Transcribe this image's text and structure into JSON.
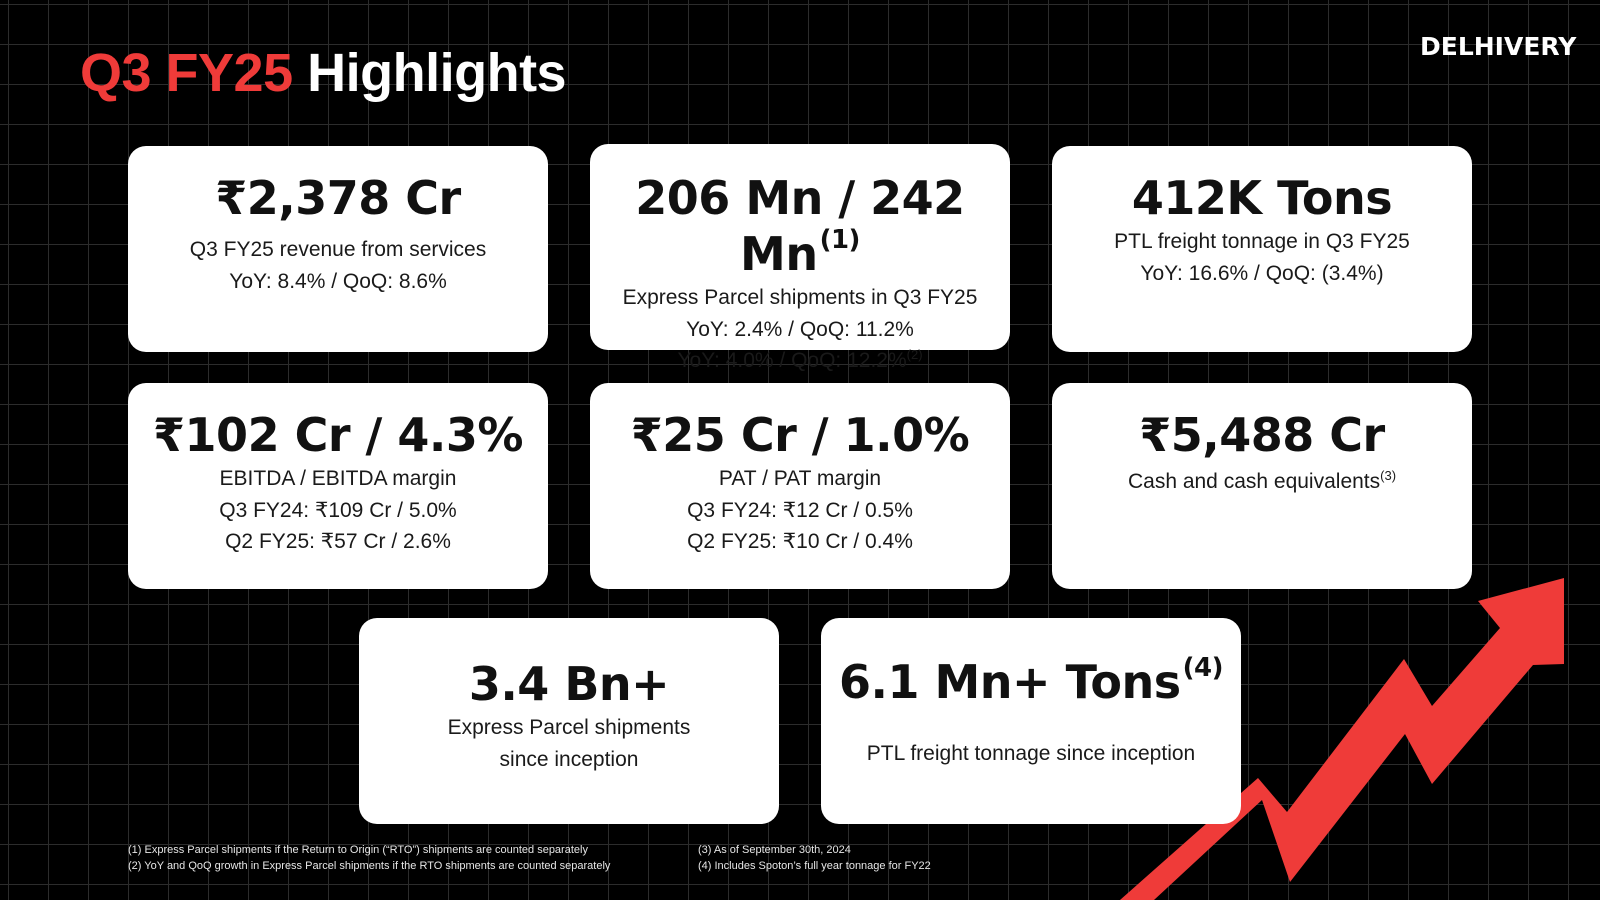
{
  "header": {
    "title_accent": "Q3 FY25",
    "title_rest": "Highlights",
    "logo_text": "DELHIVERY"
  },
  "colors": {
    "accent": "#ef3b39",
    "background": "#000000",
    "card": "#ffffff"
  },
  "cards": [
    {
      "value": "₹2,378 Cr",
      "lines": [
        "Q3 FY25 revenue from services",
        "YoY: 8.4% / QoQ: 8.6%"
      ]
    },
    {
      "value": "206 Mn / 242 Mn",
      "value_sup": "(1)",
      "lines": [
        "Express Parcel shipments in Q3 FY25",
        "YoY: 2.4% / QoQ: 11.2%",
        "YoY: 4.0% / QoQ: 12.2%"
      ],
      "line3_sup": "(2)"
    },
    {
      "value": "412K Tons",
      "lines": [
        "PTL freight tonnage in Q3 FY25",
        "YoY: 16.6% / QoQ: (3.4%)"
      ]
    },
    {
      "value": "₹102 Cr / 4.3%",
      "lines": [
        "EBITDA / EBITDA margin",
        "Q3 FY24: ₹109 Cr / 5.0%",
        "Q2 FY25: ₹57 Cr / 2.6%"
      ]
    },
    {
      "value": "₹25 Cr / 1.0%",
      "lines": [
        "PAT / PAT margin",
        "Q3 FY24: ₹12 Cr / 0.5%",
        "Q2 FY25: ₹10 Cr / 0.4%"
      ]
    },
    {
      "value": "₹5,488 Cr",
      "lines": [
        "Cash and cash equivalents"
      ],
      "line1_sup": "(3)"
    },
    {
      "value": "3.4 Bn+",
      "lines": [
        "Express Parcel shipments",
        "since inception"
      ]
    },
    {
      "value": "6.1 Mn+ Tons",
      "value_sup": "(4)",
      "lines": [
        "PTL freight tonnage since inception"
      ]
    }
  ],
  "footnotes": {
    "left": [
      "(1) Express Parcel shipments if the Return to Origin (“RTO”) shipments are counted separately",
      "(2) YoY and QoQ growth in Express Parcel shipments if the RTO shipments are counted separately"
    ],
    "right": [
      "(3) As of September 30th, 2024",
      "(4) Includes Spoton’s full year tonnage for FY22"
    ]
  },
  "decor": {
    "arrow_icon": "upward-trend-arrow-icon"
  }
}
